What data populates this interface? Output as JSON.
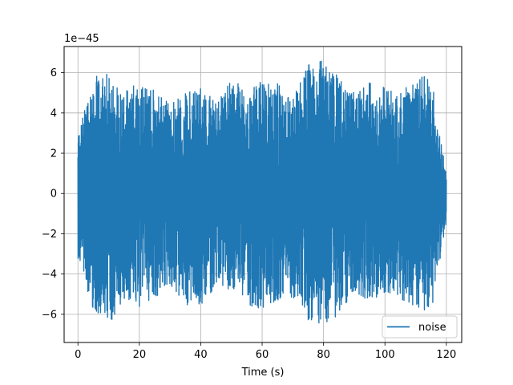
{
  "chart_data": {
    "type": "line",
    "title": "",
    "xlabel": "Time (s)",
    "ylabel": "",
    "y_offset_label": "1e−45",
    "y_scale_exponent": -45,
    "xlim": [
      -4.5,
      125
    ],
    "ylim": [
      -7.4e-45,
      7.3e-45
    ],
    "x_ticks": [
      0,
      20,
      40,
      60,
      80,
      100,
      120
    ],
    "x_tick_labels": [
      "0",
      "20",
      "40",
      "60",
      "80",
      "100",
      "120"
    ],
    "y_ticks": [
      -6e-45,
      -4e-45,
      -2e-45,
      0,
      2e-45,
      4e-45,
      6e-45
    ],
    "y_tick_labels": [
      "−6",
      "−4",
      "−2",
      "0",
      "2",
      "4",
      "6"
    ],
    "grid": true,
    "legend_position": "lower-right",
    "series": [
      {
        "name": "noise",
        "color": "#1f77b4",
        "x_range": [
          0,
          120
        ],
        "amplitude_envelope": {
          "x": [
            0,
            5,
            10,
            15,
            20,
            25,
            30,
            35,
            40,
            45,
            50,
            55,
            60,
            65,
            70,
            75,
            80,
            85,
            90,
            95,
            100,
            105,
            110,
            115,
            120
          ],
          "upper": [
            3e-45,
            5.8e-45,
            6e-45,
            5e-45,
            5.7e-45,
            5.2e-45,
            4.5e-45,
            5e-45,
            5.5e-45,
            4.5e-45,
            5.8e-45,
            5e-45,
            5.6e-45,
            5.5e-45,
            4.8e-45,
            6.5e-45,
            6.6e-45,
            5.8e-45,
            5e-45,
            5.5e-45,
            5.3e-45,
            5.2e-45,
            5.7e-45,
            5.9e-45,
            1e-45
          ],
          "lower": [
            -3.2e-45,
            -5.8e-45,
            -6.7e-45,
            -5.2e-45,
            -5.8e-45,
            -5.2e-45,
            -4.8e-45,
            -5.5e-45,
            -5.8e-45,
            -4.5e-45,
            -5e-45,
            -5.5e-45,
            -5.8e-45,
            -5.3e-45,
            -5.2e-45,
            -6.3e-45,
            -6.6e-45,
            -6e-45,
            -5e-45,
            -5.3e-45,
            -5e-45,
            -5.2e-45,
            -5.8e-45,
            -6e-45,
            -1.5e-45
          ]
        }
      }
    ]
  }
}
